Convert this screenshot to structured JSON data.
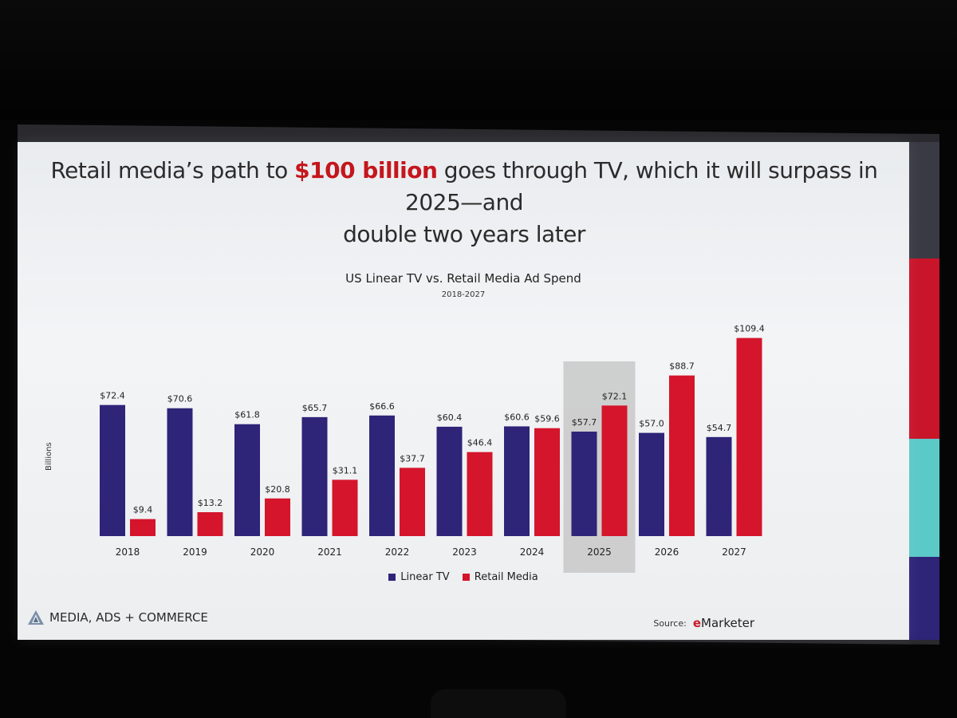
{
  "headline": {
    "part1": "Retail media’s path to ",
    "accent": "$100 billion",
    "part2": " goes through TV, which it will surpass in 2025—and",
    "line2": "double two years later"
  },
  "brand": {
    "name": "MEDIA, ADS + COMMERCE"
  },
  "source": {
    "label": "Source:",
    "logo_letter": "e",
    "logo_text": "Marketer"
  },
  "colors": {
    "linear_tv": "#2e2478",
    "retail_media": "#d4152b",
    "accent_text": "#c4161c",
    "highlight": "#c8c8c8",
    "stripe_dark": "#3a3a44",
    "stripe_red": "#c8152a",
    "stripe_teal": "#5cc9c9",
    "stripe_navy": "#2e2478"
  },
  "chart_data": {
    "type": "bar",
    "title": "US Linear TV vs. Retail Media Ad Spend",
    "subtitle": "2018-2027",
    "ylabel": "Billions",
    "categories": [
      "2018",
      "2019",
      "2020",
      "2021",
      "2022",
      "2023",
      "2024",
      "2025",
      "2026",
      "2027"
    ],
    "series": [
      {
        "name": "Linear TV",
        "values": [
          72.4,
          70.6,
          61.8,
          65.7,
          66.6,
          60.4,
          60.6,
          57.7,
          57.0,
          54.7
        ],
        "labels": [
          "$72.4",
          "$70.6",
          "$61.8",
          "$65.7",
          "$66.6",
          "$60.4",
          "$60.6",
          "$57.7",
          "$57.0",
          "$54.7"
        ]
      },
      {
        "name": "Retail Media",
        "values": [
          9.4,
          13.2,
          20.8,
          31.1,
          37.7,
          46.4,
          59.6,
          72.1,
          88.7,
          109.4
        ],
        "labels": [
          "$9.4",
          "$13.2",
          "$20.8",
          "$31.1",
          "$37.7",
          "$46.4",
          "$59.6",
          "$72.1",
          "$88.7",
          "$109.4"
        ]
      }
    ],
    "highlighted_category": "2025",
    "ylim": [
      0,
      110
    ],
    "grid": false,
    "legend": "bottom"
  }
}
